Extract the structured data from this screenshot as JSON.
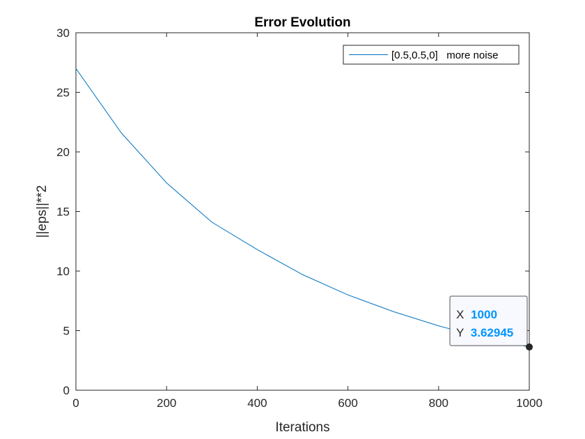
{
  "chart_data": {
    "type": "line",
    "title": "Error Evolution",
    "xlabel": "Iterations",
    "ylabel": "||eps||**2",
    "xlim": [
      0,
      1000
    ],
    "ylim": [
      0,
      30
    ],
    "xticks": [
      0,
      200,
      400,
      600,
      800,
      1000
    ],
    "yticks": [
      0,
      5,
      10,
      15,
      20,
      25,
      30
    ],
    "grid": false,
    "legend_position": "top-right",
    "series": [
      {
        "name": "[0.5,0.5,0]   more noise",
        "color": "#0072BD",
        "x": [
          0,
          100,
          200,
          300,
          400,
          500,
          600,
          700,
          800,
          900,
          1000
        ],
        "y": [
          27.0,
          21.6,
          17.4,
          14.1,
          11.8,
          9.7,
          8.0,
          6.6,
          5.4,
          4.4,
          3.62945
        ]
      }
    ],
    "datatip": {
      "x_label": "X",
      "x_value": "1000",
      "y_label": "Y",
      "y_value": "3.62945",
      "value_color": "#0096FF"
    }
  }
}
